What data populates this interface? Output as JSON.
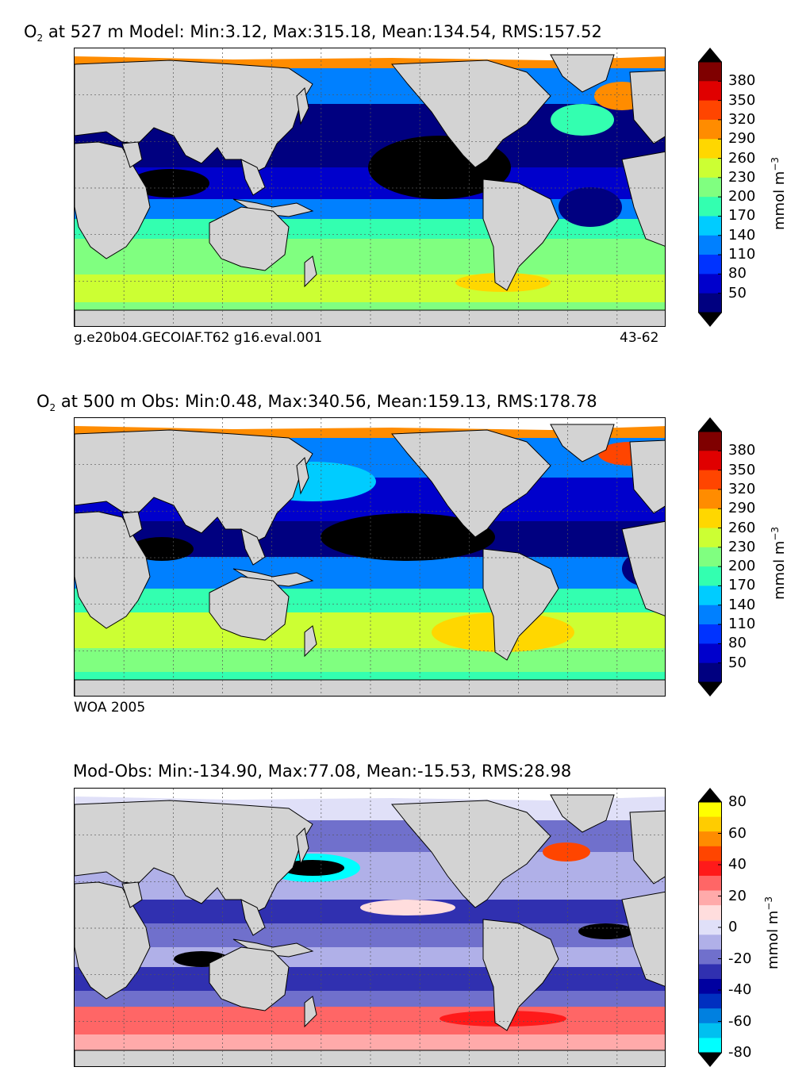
{
  "panels": [
    {
      "id": "model",
      "title_prefix": "O",
      "title_sub": "2",
      "title_rest": " at 527 m Model: Min:3.12, Max:315.18, Mean:134.54, RMS:157.52",
      "caption_left": "g.e20b04.GECOIAF.T62 g16.eval.001",
      "caption_right": "43-62",
      "colorbar": {
        "unit_main": "mmol m",
        "unit_sup": "−3",
        "ticks": [
          "380",
          "350",
          "320",
          "290",
          "260",
          "230",
          "200",
          "170",
          "140",
          "110",
          "80",
          "50"
        ],
        "colors": [
          "#7f0000",
          "#e00000",
          "#ff4500",
          "#ff8c00",
          "#ffd700",
          "#ccff33",
          "#80ff80",
          "#33ffb0",
          "#00ccff",
          "#0080ff",
          "#0033ff",
          "#0000cc",
          "#000080"
        ]
      }
    },
    {
      "id": "obs",
      "title_prefix": "O",
      "title_sub": "2",
      "title_rest": " at 500 m Obs: Min:0.48, Max:340.56, Mean:159.13, RMS:178.78",
      "caption_left": "WOA 2005",
      "caption_right": "",
      "colorbar": {
        "unit_main": "mmol m",
        "unit_sup": "−3",
        "ticks": [
          "380",
          "350",
          "320",
          "290",
          "260",
          "230",
          "200",
          "170",
          "140",
          "110",
          "80",
          "50"
        ],
        "colors": [
          "#7f0000",
          "#e00000",
          "#ff4500",
          "#ff8c00",
          "#ffd700",
          "#ccff33",
          "#80ff80",
          "#33ffb0",
          "#00ccff",
          "#0080ff",
          "#0033ff",
          "#0000cc",
          "#000080"
        ]
      }
    },
    {
      "id": "diff",
      "title_prefix": "",
      "title_sub": "",
      "title_rest": "Mod-Obs: Min:-134.90, Max:77.08, Mean:-15.53, RMS:28.98",
      "caption_left": "",
      "caption_right": "",
      "colorbar": {
        "unit_main": "mmol m",
        "unit_sup": "−3",
        "ticks": [
          "80",
          "60",
          "40",
          "20",
          "0",
          "-20",
          "-40",
          "-60",
          "-80"
        ],
        "colors": [
          "#ffff00",
          "#ffcc00",
          "#ff8c00",
          "#ff4500",
          "#ff1a1a",
          "#ff6666",
          "#ffaaaa",
          "#ffdddd",
          "#e0e0f8",
          "#b0b0e8",
          "#7070cc",
          "#3030b0",
          "#0000a0",
          "#0030c0",
          "#0080e0",
          "#00c0f0",
          "#00ffff"
        ]
      }
    }
  ],
  "colors": {
    "land": "#d3d3d3",
    "grid": "#555555",
    "ice": "#ffffff"
  }
}
